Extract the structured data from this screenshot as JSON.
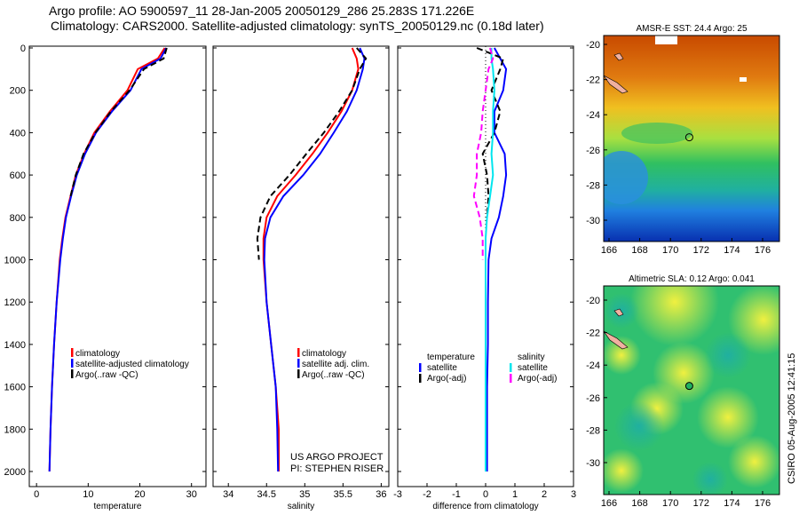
{
  "title": {
    "line1": "Argo profile: AO 5900597_11 28-Jan-2005 20050129_286 25.283S 171.226E",
    "line2": "Climatology: CARS2000. Satellite-adjusted climatology: synTS_20050129.nc (0.18d later)"
  },
  "credit": "CSIRO 05-Aug-2005 12:41:15",
  "project": {
    "line1": "US ARGO PROJECT",
    "line2": "PI: STEPHEN RISER"
  },
  "colors": {
    "climatology": "#ff0000",
    "satellite": "#0000ff",
    "argo": "#000000",
    "sal_satellite": "#00e5ee",
    "sal_argo": "#ff00ff"
  },
  "chart_data": [
    {
      "type": "line",
      "xlabel": "temperature",
      "ylabel": "",
      "xlim": [
        -1.4,
        32.8
      ],
      "ylim": [
        2010,
        -10
      ],
      "xticks": [
        "0",
        "10",
        "20",
        "30"
      ],
      "yticks": [
        "0",
        "200",
        "400",
        "600",
        "800",
        "1000",
        "1200",
        "1400",
        "1600",
        "1800",
        "2000"
      ],
      "legend": {
        "placement": "bottom-right",
        "entries": [
          "climatology",
          "satellite-adjusted climatology",
          "Argo(..raw -QC)"
        ]
      },
      "depth": [
        0,
        50,
        100,
        200,
        300,
        400,
        500,
        600,
        700,
        800,
        900,
        1000,
        1200,
        1400,
        1600,
        1800,
        2000
      ],
      "series": [
        {
          "name": "climatology",
          "color": "#ff0000",
          "dash": "",
          "values": [
            24.8,
            23.5,
            19.6,
            17.6,
            14.2,
            11.2,
            9.2,
            7.6,
            6.6,
            5.6,
            5.0,
            4.5,
            3.9,
            3.4,
            3.0,
            2.7,
            2.5
          ]
        },
        {
          "name": "satellite-adjusted climatology",
          "color": "#0000ff",
          "dash": "",
          "values": [
            25.1,
            24.0,
            20.3,
            18.2,
            14.6,
            11.5,
            9.4,
            7.8,
            6.7,
            5.7,
            5.1,
            4.6,
            3.9,
            3.4,
            3.0,
            2.7,
            2.5
          ]
        },
        {
          "name": "Argo(..raw -QC)",
          "color": "#000000",
          "dash": "7,4",
          "values": [
            25.2,
            24.6,
            20.8,
            18.0,
            14.4,
            11.4,
            9.1,
            7.6,
            6.6,
            null,
            null,
            null,
            null,
            null,
            null,
            null,
            null
          ]
        }
      ]
    },
    {
      "type": "line",
      "xlabel": "salinity",
      "ylabel": "",
      "xlim": [
        33.8,
        36.1
      ],
      "ylim": [
        2010,
        -10
      ],
      "xticks": [
        "34",
        "34.5",
        "35",
        "35.5",
        "36"
      ],
      "legend": {
        "placement": "bottom-right",
        "entries": [
          "climatology",
          "satellite adj. clim.",
          "Argo(..raw -QC)"
        ]
      },
      "depth": [
        0,
        50,
        100,
        200,
        300,
        400,
        500,
        600,
        700,
        800,
        900,
        1000,
        1200,
        1400,
        1600,
        1800,
        2000
      ],
      "series": [
        {
          "name": "climatology",
          "color": "#ff0000",
          "dash": "",
          "values": [
            35.62,
            35.68,
            35.7,
            35.62,
            35.48,
            35.3,
            35.1,
            34.88,
            34.64,
            34.5,
            34.46,
            34.46,
            34.5,
            34.56,
            34.62,
            34.66,
            34.66
          ]
        },
        {
          "name": "satellite adj. clim.",
          "color": "#0000ff",
          "dash": "",
          "values": [
            35.72,
            35.78,
            35.76,
            35.68,
            35.55,
            35.38,
            35.2,
            34.98,
            34.72,
            34.55,
            34.48,
            34.47,
            34.5,
            34.56,
            34.62,
            34.64,
            34.65
          ]
        },
        {
          "name": "Argo(..raw -QC)",
          "color": "#000000",
          "dash": "7,4",
          "values": [
            35.68,
            35.8,
            35.72,
            35.62,
            35.45,
            35.25,
            35.02,
            34.8,
            34.55,
            34.42,
            34.38,
            34.4,
            null,
            null,
            null,
            null,
            null
          ]
        }
      ]
    },
    {
      "type": "line",
      "xlabel": "difference from climatology",
      "ylabel": "",
      "xlim": [
        -3,
        3
      ],
      "ylim": [
        2010,
        -10
      ],
      "xticks": [
        "-3",
        "-2",
        "-1",
        "0",
        "1",
        "2",
        "3"
      ],
      "legend": {
        "placement": "bottom",
        "entries": [
          "temperature",
          "satellite",
          "Argo(-adj)",
          "salinity",
          "satellite",
          "Argo(-adj)"
        ]
      },
      "depth": [
        0,
        50,
        100,
        200,
        300,
        400,
        500,
        600,
        700,
        800,
        900,
        1000,
        1200,
        1400,
        1600,
        1800,
        2000
      ],
      "series": [
        {
          "name": "temperature satellite",
          "color": "#0000ff",
          "dash": "",
          "values": [
            0.3,
            0.5,
            0.7,
            0.6,
            0.3,
            0.3,
            0.65,
            0.7,
            0.6,
            0.45,
            0.2,
            0.1,
            0.08,
            0.08,
            0.05,
            0.05,
            0.05
          ]
        },
        {
          "name": "temperature Argo(-adj)",
          "color": "#000000",
          "dash": "7,4",
          "values": [
            -0.3,
            0.6,
            0.5,
            0.2,
            0.5,
            0.3,
            -0.1,
            0.05,
            0.1,
            0.05,
            null,
            null,
            null,
            null,
            null,
            null,
            null
          ]
        },
        {
          "name": "salinity satellite",
          "color": "#00e5ee",
          "dash": "",
          "values": [
            0.2,
            0.2,
            0.25,
            0.3,
            0.25,
            0.25,
            0.2,
            0.25,
            0.15,
            0.05,
            0.0,
            0.0,
            0.0,
            0.0,
            0.0,
            0.0,
            0.0
          ]
        },
        {
          "name": "salinity Argo(-adj)",
          "color": "#ff00ff",
          "dash": "7,4",
          "values": [
            0.15,
            0.25,
            0.1,
            0.0,
            -0.1,
            -0.15,
            -0.3,
            -0.3,
            -0.4,
            -0.2,
            -0.1,
            -0.1,
            null,
            null,
            null,
            null,
            null
          ]
        }
      ]
    }
  ],
  "maps": [
    {
      "title": "AMSR-E SST: 24.4 Argo: 25",
      "xticks": [
        "166",
        "168",
        "170",
        "172",
        "174",
        "176"
      ],
      "yticks": [
        "-20",
        "-22",
        "-24",
        "-26",
        "-28",
        "-30"
      ]
    },
    {
      "title": "Altimetric SLA: 0.12 Argo: 0.041",
      "xticks": [
        "166",
        "168",
        "170",
        "172",
        "174",
        "176"
      ],
      "yticks": [
        "-20",
        "-22",
        "-24",
        "-26",
        "-28",
        "-30"
      ]
    }
  ]
}
